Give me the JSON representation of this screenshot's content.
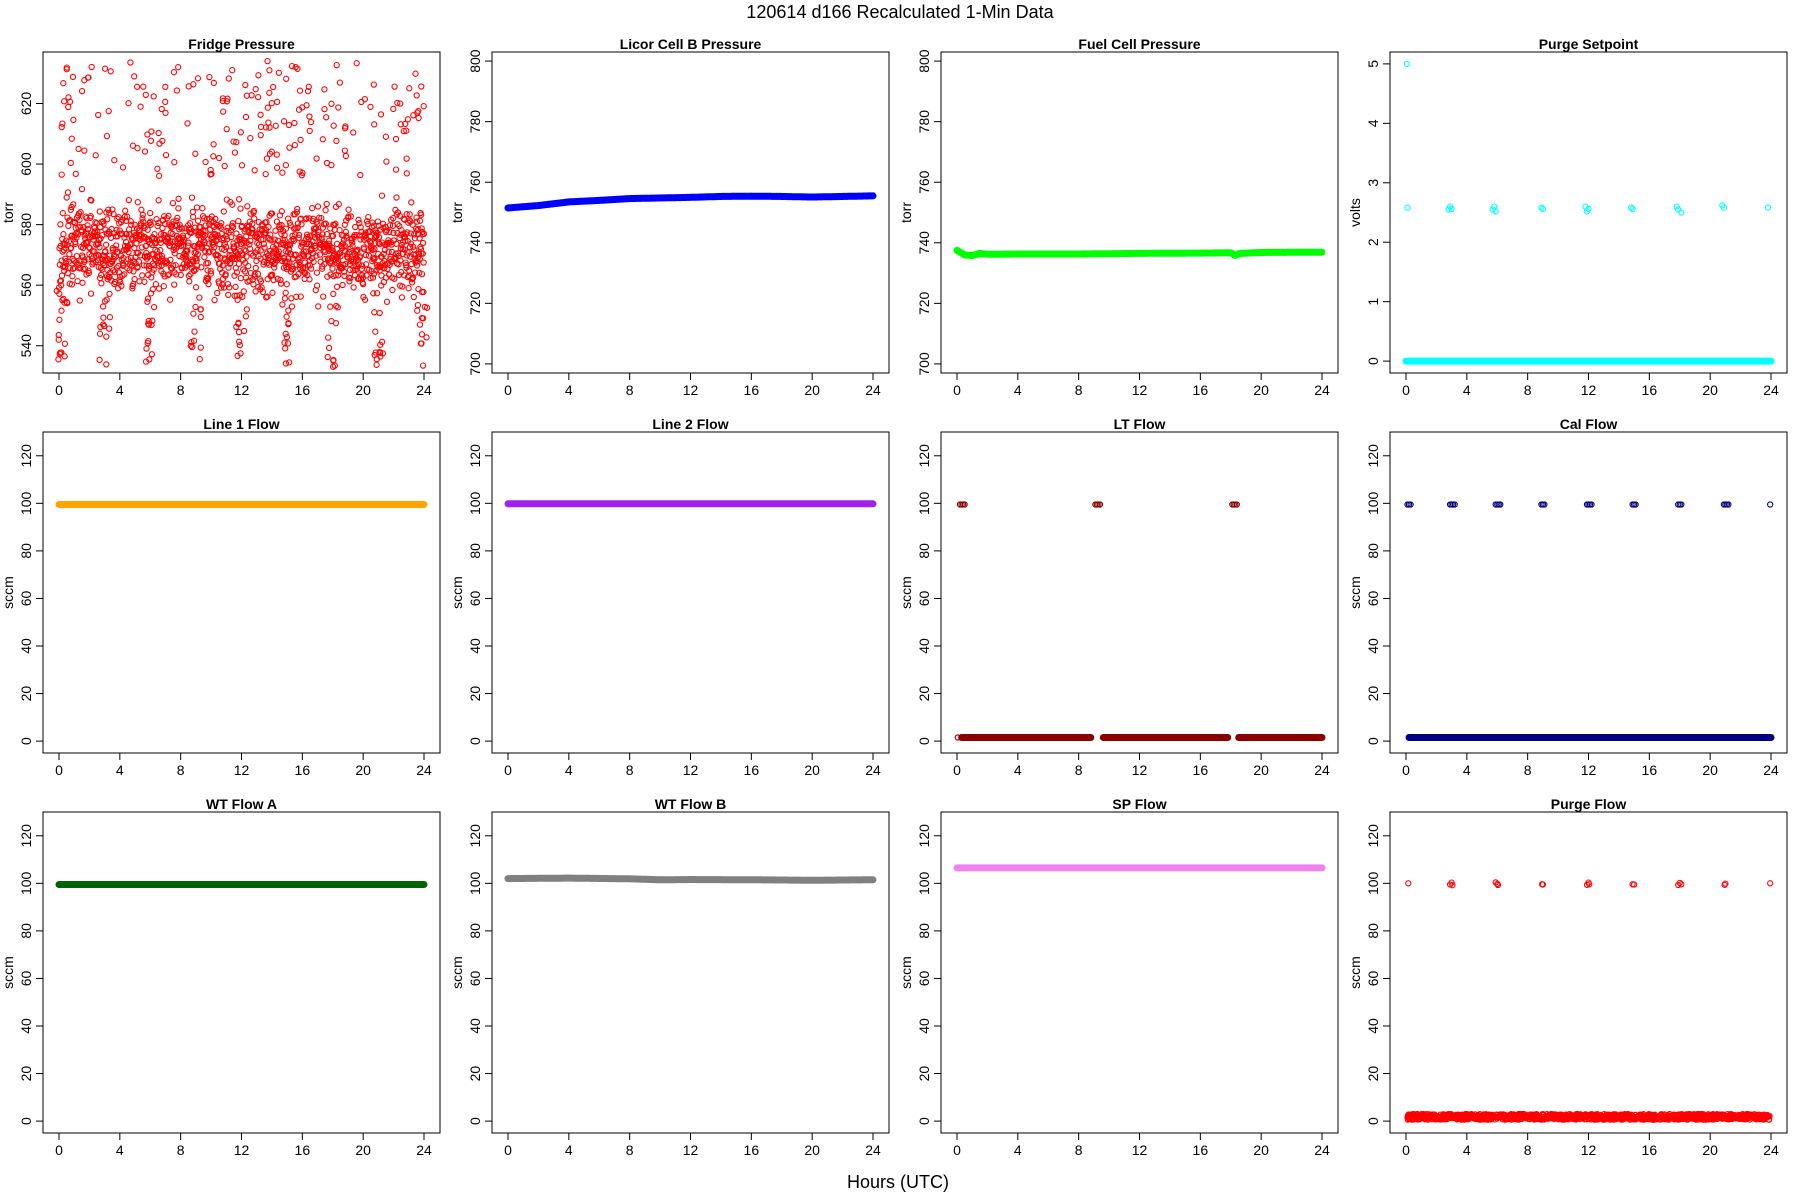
{
  "page": {
    "title": "120614    d166    Recalculated 1-Min Data",
    "x_axis_title": "Hours (UTC)"
  },
  "chart_data": [
    {
      "type": "scatter",
      "title": "Fridge Pressure",
      "ylabel": "torr",
      "xlim": [
        0,
        24
      ],
      "ylim": [
        531,
        637
      ],
      "xticks": [
        0,
        4,
        8,
        12,
        16,
        20,
        24
      ],
      "yticks": [
        540,
        560,
        580,
        600,
        620
      ],
      "color": "#ff0000",
      "marker": "open-circle",
      "series": [
        {
          "pattern": "noisy",
          "x_range": [
            0,
            24
          ],
          "band_center": 572,
          "band_spread": 7,
          "outlier_range": [
            595,
            634
          ],
          "dip_range": [
            533,
            560
          ],
          "dip_hours": [
            0.2,
            3.0,
            6.0,
            9.0,
            12.0,
            15.0,
            18.0,
            21.0,
            23.9
          ]
        }
      ]
    },
    {
      "type": "scatter",
      "title": "Licor Cell B Pressure",
      "ylabel": "torr",
      "xlim": [
        0,
        24
      ],
      "ylim": [
        697,
        803
      ],
      "xticks": [
        0,
        4,
        8,
        12,
        16,
        20,
        24
      ],
      "yticks": [
        700,
        720,
        740,
        760,
        780,
        800
      ],
      "color": "#0000ff",
      "marker": "open-circle",
      "series": [
        {
          "pattern": "line",
          "x": [
            0,
            2,
            4,
            6,
            8,
            10,
            12,
            14,
            16,
            18,
            20,
            22,
            24
          ],
          "y": [
            751.5,
            752.3,
            753.5,
            754.0,
            754.6,
            754.8,
            755.0,
            755.3,
            755.4,
            755.3,
            755.1,
            755.3,
            755.5
          ]
        }
      ]
    },
    {
      "type": "scatter",
      "title": "Fuel Cell Pressure",
      "ylabel": "torr",
      "xlim": [
        0,
        24
      ],
      "ylim": [
        697,
        803
      ],
      "xticks": [
        0,
        4,
        8,
        12,
        16,
        20,
        24
      ],
      "yticks": [
        700,
        720,
        740,
        760,
        780,
        800
      ],
      "color": "#00ff00",
      "marker": "open-circle",
      "series": [
        {
          "pattern": "line",
          "x": [
            0,
            0.5,
            1,
            1.5,
            2,
            4,
            8,
            12,
            16,
            18,
            18.3,
            18.6,
            20,
            24
          ],
          "y": [
            737.5,
            736.0,
            735.8,
            736.5,
            736.2,
            736.3,
            736.3,
            736.5,
            736.6,
            736.7,
            735.8,
            736.5,
            736.8,
            736.9
          ]
        }
      ]
    },
    {
      "type": "scatter",
      "title": "Purge Setpoint",
      "ylabel": "volts",
      "xlim": [
        0,
        24
      ],
      "ylim": [
        -0.2,
        5.2
      ],
      "xticks": [
        0,
        4,
        8,
        12,
        16,
        20,
        24
      ],
      "yticks": [
        0,
        1,
        2,
        3,
        4,
        5
      ],
      "color": "#00ffff",
      "marker": "open-circle",
      "series": [
        {
          "pattern": "line",
          "x": [
            0,
            24
          ],
          "y": [
            0,
            0
          ]
        },
        {
          "pattern": "clusters",
          "x": [
            0.1,
            2.8,
            2.9,
            3.0,
            5.7,
            5.8,
            5.9,
            8.9,
            9.0,
            11.8,
            11.9,
            12.0,
            14.8,
            14.9,
            17.8,
            17.9,
            18.1,
            20.8,
            20.9,
            23.8
          ],
          "y": [
            2.58,
            2.55,
            2.6,
            2.56,
            2.55,
            2.6,
            2.52,
            2.58,
            2.56,
            2.6,
            2.52,
            2.56,
            2.58,
            2.56,
            2.6,
            2.55,
            2.5,
            2.62,
            2.58,
            2.58
          ]
        },
        {
          "pattern": "points",
          "x": [
            0.05
          ],
          "y": [
            5.0
          ]
        }
      ]
    },
    {
      "type": "scatter",
      "title": "Line 1 Flow",
      "ylabel": "sccm",
      "xlim": [
        0,
        24
      ],
      "ylim": [
        -5,
        130
      ],
      "xticks": [
        0,
        4,
        8,
        12,
        16,
        20,
        24
      ],
      "yticks": [
        0,
        20,
        40,
        60,
        80,
        100,
        120
      ],
      "color": "#ffa500",
      "marker": "open-circle",
      "series": [
        {
          "pattern": "line",
          "x": [
            0,
            24
          ],
          "y": [
            99.5,
            99.5
          ]
        }
      ]
    },
    {
      "type": "scatter",
      "title": "Line 2 Flow",
      "ylabel": "sccm",
      "xlim": [
        0,
        24
      ],
      "ylim": [
        -5,
        130
      ],
      "xticks": [
        0,
        4,
        8,
        12,
        16,
        20,
        24
      ],
      "yticks": [
        0,
        20,
        40,
        60,
        80,
        100,
        120
      ],
      "color": "#a020f0",
      "marker": "open-circle",
      "series": [
        {
          "pattern": "line",
          "x": [
            0,
            24
          ],
          "y": [
            99.8,
            99.8
          ]
        }
      ]
    },
    {
      "type": "scatter",
      "title": "LT Flow",
      "ylabel": "sccm",
      "xlim": [
        0,
        24
      ],
      "ylim": [
        -5,
        130
      ],
      "xticks": [
        0,
        4,
        8,
        12,
        16,
        20,
        24
      ],
      "yticks": [
        0,
        20,
        40,
        60,
        80,
        100,
        120
      ],
      "color": "#8b0000",
      "marker": "open-circle",
      "series": [
        {
          "pattern": "line",
          "x": [
            0.3,
            8.8,
            9.6,
            17.8,
            18.5,
            24
          ],
          "y": [
            1.5,
            1.5,
            1.5,
            1.5,
            1.5,
            1.5
          ],
          "gaps": [
            [
              8.8,
              9.6
            ],
            [
              17.8,
              18.5
            ]
          ]
        },
        {
          "pattern": "clusters",
          "x": [
            0.2,
            0.3,
            0.4,
            0.5,
            9.1,
            9.2,
            9.3,
            9.4,
            18.1,
            18.2,
            18.3,
            18.4
          ],
          "y": [
            99.5,
            99.5,
            99.5,
            99.5,
            99.5,
            99.5,
            99.5,
            99.5,
            99.5,
            99.5,
            99.5,
            99.5
          ]
        },
        {
          "pattern": "points",
          "x": [
            0.05
          ],
          "y": [
            1.5
          ]
        }
      ]
    },
    {
      "type": "scatter",
      "title": "Cal Flow",
      "ylabel": "sccm",
      "xlim": [
        0,
        24
      ],
      "ylim": [
        -5,
        130
      ],
      "xticks": [
        0,
        4,
        8,
        12,
        16,
        20,
        24
      ],
      "yticks": [
        0,
        20,
        40,
        60,
        80,
        100,
        120
      ],
      "color": "#000080",
      "marker": "open-circle",
      "series": [
        {
          "pattern": "line",
          "x": [
            0.2,
            24
          ],
          "y": [
            1.5,
            1.5
          ]
        },
        {
          "pattern": "clusters",
          "x": [
            0.1,
            0.2,
            0.3,
            2.9,
            3.0,
            3.1,
            3.2,
            5.9,
            6.0,
            6.1,
            6.2,
            8.9,
            9.0,
            9.1,
            11.9,
            12.0,
            12.1,
            12.2,
            14.9,
            15.0,
            15.1,
            17.9,
            18.0,
            18.1,
            20.9,
            21.0,
            21.1,
            21.2
          ],
          "y": [
            99.5,
            99.5,
            99.5,
            99.5,
            99.5,
            99.5,
            99.5,
            99.5,
            99.5,
            99.5,
            99.5,
            99.5,
            99.5,
            99.5,
            99.5,
            99.5,
            99.5,
            99.5,
            99.5,
            99.5,
            99.5,
            99.5,
            99.5,
            99.5,
            99.5,
            99.5,
            99.5,
            99.5
          ]
        },
        {
          "pattern": "points",
          "x": [
            23.95
          ],
          "y": [
            99.5
          ]
        }
      ]
    },
    {
      "type": "scatter",
      "title": "WT Flow A",
      "ylabel": "sccm",
      "xlim": [
        0,
        24
      ],
      "ylim": [
        -5,
        130
      ],
      "xticks": [
        0,
        4,
        8,
        12,
        16,
        20,
        24
      ],
      "yticks": [
        0,
        20,
        40,
        60,
        80,
        100,
        120
      ],
      "color": "#006400",
      "marker": "open-circle",
      "series": [
        {
          "pattern": "line",
          "x": [
            0,
            24
          ],
          "y": [
            99.5,
            99.5
          ]
        }
      ]
    },
    {
      "type": "scatter",
      "title": "WT Flow B",
      "ylabel": "sccm",
      "xlim": [
        0,
        24
      ],
      "ylim": [
        -5,
        130
      ],
      "xticks": [
        0,
        4,
        8,
        12,
        16,
        20,
        24
      ],
      "yticks": [
        0,
        20,
        40,
        60,
        80,
        100,
        120
      ],
      "color": "#808080",
      "marker": "open-circle",
      "series": [
        {
          "pattern": "line",
          "x": [
            0,
            4,
            8,
            10,
            12,
            16,
            20,
            24
          ],
          "y": [
            102.0,
            102.2,
            101.9,
            101.5,
            101.6,
            101.5,
            101.3,
            101.5
          ]
        }
      ]
    },
    {
      "type": "scatter",
      "title": "SP Flow",
      "ylabel": "sccm",
      "xlim": [
        0,
        24
      ],
      "ylim": [
        -5,
        130
      ],
      "xticks": [
        0,
        4,
        8,
        12,
        16,
        20,
        24
      ],
      "yticks": [
        0,
        20,
        40,
        60,
        80,
        100,
        120
      ],
      "color": "#ee82ee",
      "marker": "open-circle",
      "series": [
        {
          "pattern": "line",
          "x": [
            0,
            24
          ],
          "y": [
            106.5,
            106.5
          ]
        }
      ]
    },
    {
      "type": "scatter",
      "title": "Purge Flow",
      "ylabel": "sccm",
      "xlim": [
        0,
        24
      ],
      "ylim": [
        -5,
        130
      ],
      "xticks": [
        0,
        4,
        8,
        12,
        16,
        20,
        24
      ],
      "yticks": [
        0,
        20,
        40,
        60,
        80,
        100,
        120
      ],
      "color": "#ff0000",
      "marker": "open-circle",
      "series": [
        {
          "pattern": "noisy-line",
          "x_range": [
            0.1,
            23.9
          ],
          "center": 1.8,
          "spread": 1.2
        },
        {
          "pattern": "clusters",
          "x": [
            0.15,
            2.9,
            3.0,
            3.05,
            5.9,
            6.0,
            6.05,
            8.95,
            9.0,
            11.9,
            12.0,
            12.05,
            14.9,
            15.0,
            17.9,
            18.0,
            18.1,
            20.95,
            21.0,
            23.95
          ],
          "y": [
            100.0,
            99.5,
            100.3,
            99.2,
            100.4,
            99.8,
            99.3,
            99.6,
            99.5,
            99.4,
            100.3,
            99.6,
            99.6,
            99.5,
            99.3,
            100.2,
            99.6,
            99.4,
            99.9,
            100.0
          ]
        }
      ]
    }
  ]
}
